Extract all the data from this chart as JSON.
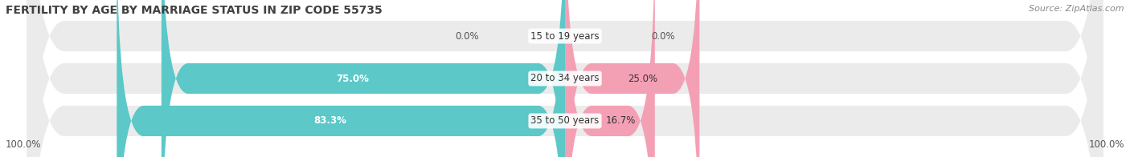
{
  "title": "FERTILITY BY AGE BY MARRIAGE STATUS IN ZIP CODE 55735",
  "source": "Source: ZipAtlas.com",
  "categories": [
    "15 to 19 years",
    "20 to 34 years",
    "35 to 50 years"
  ],
  "married_pct": [
    0.0,
    75.0,
    83.3
  ],
  "unmarried_pct": [
    0.0,
    25.0,
    16.7
  ],
  "married_color": "#5CC8C8",
  "unmarried_color": "#F4A0B4",
  "bar_bg_color": "#EBEBEB",
  "title_fontsize": 10,
  "source_fontsize": 8,
  "label_fontsize": 8.5,
  "pct_fontsize": 8.5,
  "legend_fontsize": 9,
  "fig_bg_color": "#FFFFFF"
}
